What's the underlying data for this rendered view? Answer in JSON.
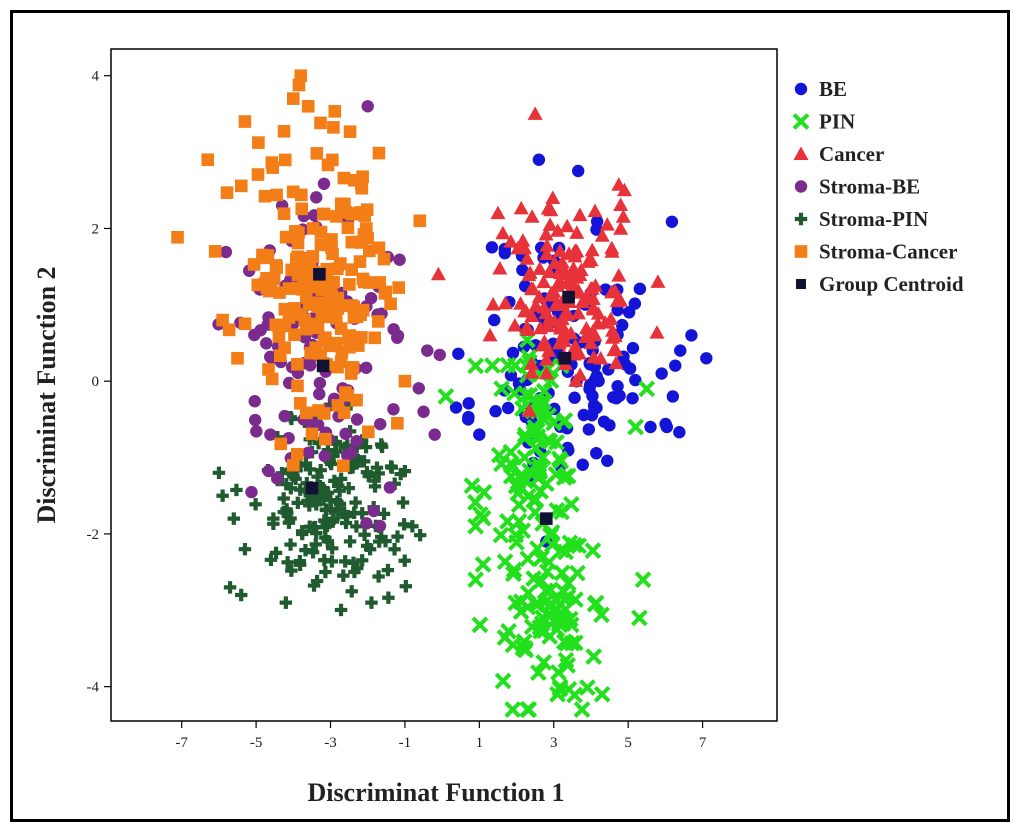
{
  "chart_data": {
    "type": "scatter",
    "title": "",
    "xlabel": "Discriminat Function 1",
    "ylabel": "Discriminat Function 2",
    "xlim": [
      -8.9,
      9.0
    ],
    "ylim": [
      -4.45,
      4.35
    ],
    "x_ticks": [
      -7,
      -5,
      -3,
      -1,
      1,
      3,
      5,
      7
    ],
    "x_tick_labels": [
      "-7",
      "-5",
      "-3",
      "-1",
      "1",
      "3",
      "5",
      "7"
    ],
    "y_ticks": [
      -4,
      -2,
      0,
      2,
      4
    ],
    "y_tick_labels": [
      "-4",
      "-2",
      "0",
      "2",
      "4"
    ],
    "grid": false,
    "legend_position": "outside-right-top",
    "series": [
      {
        "name": "BE",
        "marker": "circle",
        "color": "#1414d8",
        "clusters": [
          {
            "cx": 3.4,
            "cy": 0.3,
            "sx": 1.2,
            "sy": 0.9,
            "n": 125,
            "seed": 11
          }
        ],
        "points": [
          [
            2.6,
            2.9
          ],
          [
            6.7,
            0.6
          ],
          [
            7.1,
            0.3
          ],
          [
            6.4,
            0.4
          ],
          [
            5.9,
            0.1
          ],
          [
            6.2,
            -0.2
          ],
          [
            5.6,
            -0.6
          ],
          [
            0.7,
            -0.5
          ],
          [
            1.4,
            0.8
          ],
          [
            2.8,
            -2.1
          ]
        ]
      },
      {
        "name": "PIN",
        "marker": "x",
        "color": "#22e01c",
        "clusters": [
          {
            "cx": 2.5,
            "cy": -1.1,
            "sx": 0.55,
            "sy": 0.75,
            "n": 95,
            "seed": 21
          },
          {
            "cx": 2.8,
            "cy": -3.0,
            "sx": 0.6,
            "sy": 0.55,
            "n": 85,
            "seed": 22
          }
        ],
        "points": [
          [
            0.1,
            -0.2
          ],
          [
            0.9,
            0.2
          ],
          [
            0.9,
            -1.9
          ],
          [
            1.1,
            -2.4
          ],
          [
            0.9,
            -2.6
          ],
          [
            5.4,
            -2.6
          ],
          [
            5.3,
            -3.1
          ],
          [
            5.5,
            -0.1
          ],
          [
            5.2,
            -0.6
          ],
          [
            2.3,
            -4.3
          ],
          [
            4.3,
            -4.1
          ],
          [
            3.1,
            -4.1
          ]
        ]
      },
      {
        "name": "Cancer",
        "marker": "triangle",
        "color": "#e8323a",
        "clusters": [
          {
            "cx": 3.3,
            "cy": 1.1,
            "sx": 0.9,
            "sy": 0.6,
            "n": 150,
            "seed": 31
          }
        ],
        "points": [
          [
            2.5,
            3.5
          ],
          [
            -0.1,
            1.4
          ],
          [
            4.9,
            2.5
          ],
          [
            5.8,
            1.3
          ],
          [
            1.5,
            2.2
          ]
        ]
      },
      {
        "name": "Stroma-BE",
        "marker": "circle",
        "color": "#7b2a8e",
        "clusters": [
          {
            "cx": -3.2,
            "cy": 0.4,
            "sx": 1.2,
            "sy": 0.9,
            "n": 115,
            "seed": 41
          }
        ],
        "points": [
          [
            -2.0,
            3.6
          ],
          [
            -0.4,
            0.4
          ],
          [
            -0.5,
            -0.4
          ],
          [
            -0.2,
            -0.7
          ],
          [
            -4.3,
            2.3
          ],
          [
            -4.9,
            1.2
          ]
        ]
      },
      {
        "name": "Stroma-PIN",
        "marker": "plus",
        "color": "#1f5b2f",
        "clusters": [
          {
            "cx": -3.0,
            "cy": -1.6,
            "sx": 1.0,
            "sy": 0.6,
            "n": 170,
            "seed": 51
          }
        ],
        "points": [
          [
            -6.0,
            -1.2
          ],
          [
            -5.9,
            -1.5
          ],
          [
            -5.6,
            -1.8
          ],
          [
            -5.3,
            -2.2
          ],
          [
            -5.7,
            -2.7
          ],
          [
            -5.4,
            -2.8
          ],
          [
            -1.9,
            -2.9
          ],
          [
            -0.8,
            -1.9
          ],
          [
            -4.2,
            -2.9
          ]
        ]
      },
      {
        "name": "Stroma-Cancer",
        "marker": "square",
        "color": "#f37d16",
        "clusters": [
          {
            "cx": -3.3,
            "cy": 1.4,
            "sx": 0.95,
            "sy": 1.0,
            "n": 200,
            "seed": 61
          }
        ],
        "points": [
          [
            -6.3,
            2.9
          ],
          [
            -6.1,
            1.7
          ],
          [
            -5.9,
            0.8
          ],
          [
            -5.3,
            3.4
          ],
          [
            -3.8,
            4.0
          ],
          [
            -4.0,
            3.7
          ],
          [
            -3.6,
            3.6
          ],
          [
            -0.6,
            2.1
          ],
          [
            -5.5,
            0.3
          ],
          [
            -1.0,
            0.0
          ],
          [
            -4.0,
            -1.1
          ]
        ]
      },
      {
        "name": "Group Centroid",
        "marker": "square",
        "color": "#111133",
        "clusters": [],
        "points": [
          [
            -3.3,
            1.4
          ],
          [
            -3.2,
            0.2
          ],
          [
            -3.5,
            -1.4
          ],
          [
            3.4,
            1.1
          ],
          [
            3.3,
            0.3
          ],
          [
            2.8,
            -1.8
          ]
        ]
      }
    ]
  }
}
